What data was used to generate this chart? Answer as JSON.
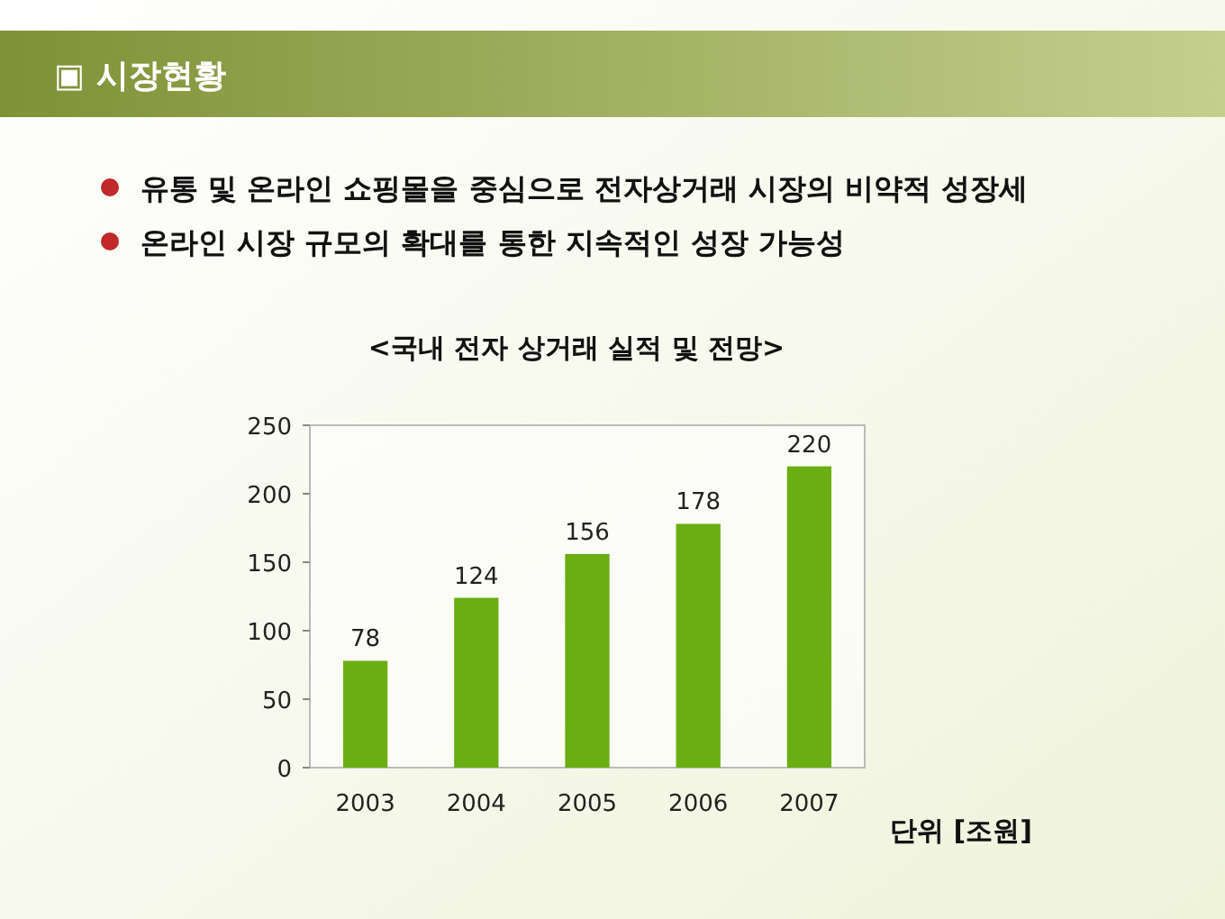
{
  "chart_data": {
    "type": "bar",
    "title": "▣ 시장현황",
    "subtitle": "<국내 전자 상거래 실적 및 전망>",
    "annotations": [
      "유통 및 온라인 쇼핑몰을 중심으로 전자상거래 시장의 비약적 성장세",
      "온라인 시장 규모의 확대를 통한 지속적인 성장 가능성",
      "단위 [조원]"
    ],
    "categories": [
      "2003",
      "2004",
      "2005",
      "2006",
      "2007"
    ],
    "values": [
      78,
      124,
      156,
      178,
      220
    ],
    "color": "#6aae12",
    "ylim": [
      0,
      250
    ],
    "yticks": [
      0,
      50,
      100,
      150,
      200,
      250
    ],
    "data_labels": true,
    "grid": false
  }
}
